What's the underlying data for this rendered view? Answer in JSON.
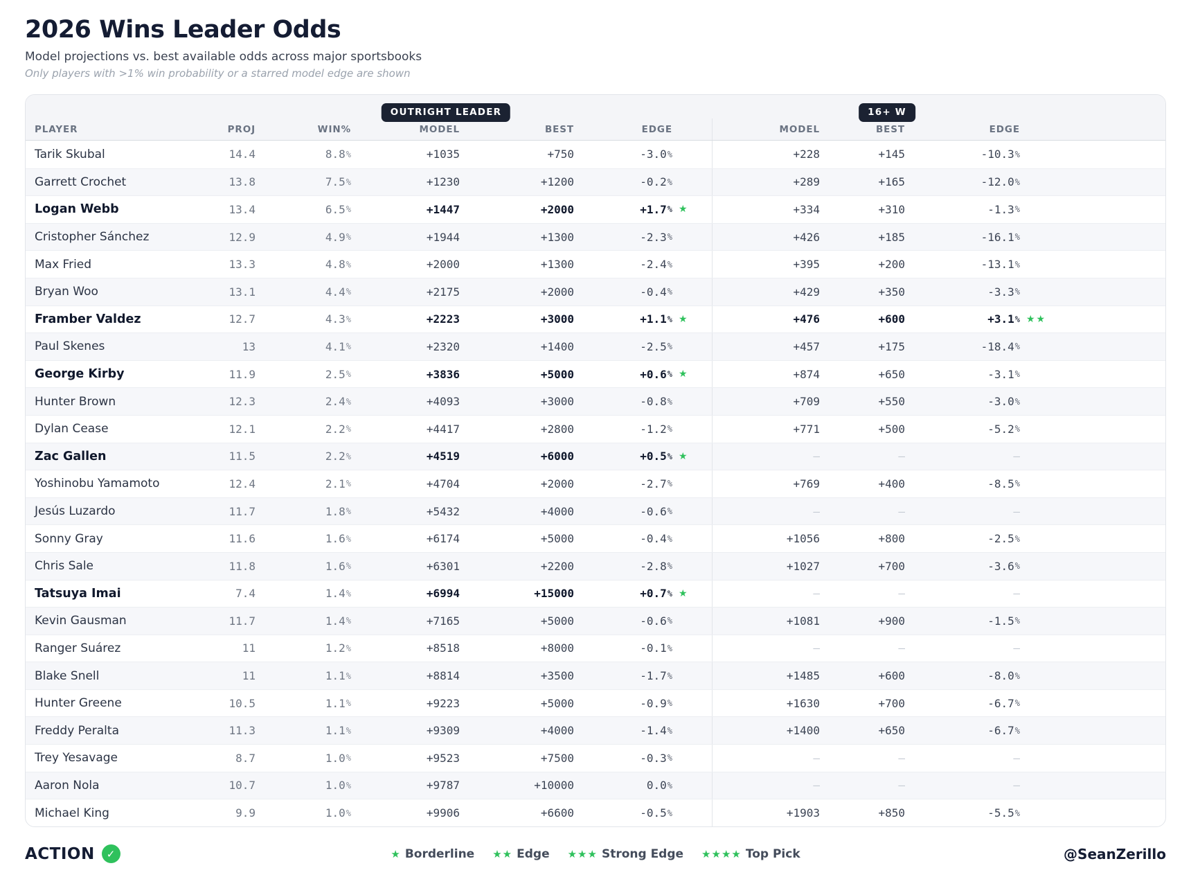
{
  "header": {
    "title": "2026 Wins Leader Odds",
    "subtitle": "Model projections vs. best available odds across major sportsbooks",
    "note": "Only players with >1% win probability or a starred model edge are shown"
  },
  "symbols": {
    "percent": "%"
  },
  "colors": {
    "accent_green": "#2fc15c",
    "badge_navy": "#1b2232"
  },
  "table": {
    "group_badges": {
      "outright": "OUTRIGHT LEADER",
      "wins16": "16+ W"
    },
    "columns": {
      "player": "PLAYER",
      "proj": "PROJ",
      "win": "WIN%",
      "model": "MODEL",
      "best": "BEST",
      "edge": "EDGE"
    },
    "rows": [
      {
        "player": "Tarik Skubal",
        "proj": "14.4",
        "win": "8.8",
        "om": "+1035",
        "ob": "+750",
        "oe": "-3.0",
        "os": "",
        "wm": "+228",
        "wb": "+145",
        "we": "-10.3",
        "ws": "",
        "bold": false
      },
      {
        "player": "Garrett Crochet",
        "proj": "13.8",
        "win": "7.5",
        "om": "+1230",
        "ob": "+1200",
        "oe": "-0.2",
        "os": "",
        "wm": "+289",
        "wb": "+165",
        "we": "-12.0",
        "ws": "",
        "bold": false
      },
      {
        "player": "Logan Webb",
        "proj": "13.4",
        "win": "6.5",
        "om": "+1447",
        "ob": "+2000",
        "oe": "+1.7",
        "os": "★",
        "wm": "+334",
        "wb": "+310",
        "we": "-1.3",
        "ws": "",
        "bold": true
      },
      {
        "player": "Cristopher Sánchez",
        "proj": "12.9",
        "win": "4.9",
        "om": "+1944",
        "ob": "+1300",
        "oe": "-2.3",
        "os": "",
        "wm": "+426",
        "wb": "+185",
        "we": "-16.1",
        "ws": "",
        "bold": false
      },
      {
        "player": "Max Fried",
        "proj": "13.3",
        "win": "4.8",
        "om": "+2000",
        "ob": "+1300",
        "oe": "-2.4",
        "os": "",
        "wm": "+395",
        "wb": "+200",
        "we": "-13.1",
        "ws": "",
        "bold": false
      },
      {
        "player": "Bryan Woo",
        "proj": "13.1",
        "win": "4.4",
        "om": "+2175",
        "ob": "+2000",
        "oe": "-0.4",
        "os": "",
        "wm": "+429",
        "wb": "+350",
        "we": "-3.3",
        "ws": "",
        "bold": false
      },
      {
        "player": "Framber Valdez",
        "proj": "12.7",
        "win": "4.3",
        "om": "+2223",
        "ob": "+3000",
        "oe": "+1.1",
        "os": "★",
        "wm": "+476",
        "wb": "+600",
        "we": "+3.1",
        "ws": "★★",
        "bold": true
      },
      {
        "player": "Paul Skenes",
        "proj": "13",
        "win": "4.1",
        "om": "+2320",
        "ob": "+1400",
        "oe": "-2.5",
        "os": "",
        "wm": "+457",
        "wb": "+175",
        "we": "-18.4",
        "ws": "",
        "bold": false
      },
      {
        "player": "George Kirby",
        "proj": "11.9",
        "win": "2.5",
        "om": "+3836",
        "ob": "+5000",
        "oe": "+0.6",
        "os": "★",
        "wm": "+874",
        "wb": "+650",
        "we": "-3.1",
        "ws": "",
        "bold": true
      },
      {
        "player": "Hunter Brown",
        "proj": "12.3",
        "win": "2.4",
        "om": "+4093",
        "ob": "+3000",
        "oe": "-0.8",
        "os": "",
        "wm": "+709",
        "wb": "+550",
        "we": "-3.0",
        "ws": "",
        "bold": false
      },
      {
        "player": "Dylan Cease",
        "proj": "12.1",
        "win": "2.2",
        "om": "+4417",
        "ob": "+2800",
        "oe": "-1.2",
        "os": "",
        "wm": "+771",
        "wb": "+500",
        "we": "-5.2",
        "ws": "",
        "bold": false
      },
      {
        "player": "Zac Gallen",
        "proj": "11.5",
        "win": "2.2",
        "om": "+4519",
        "ob": "+6000",
        "oe": "+0.5",
        "os": "★",
        "wm": "—",
        "wb": "—",
        "we": "—",
        "ws": "",
        "bold": true
      },
      {
        "player": "Yoshinobu Yamamoto",
        "proj": "12.4",
        "win": "2.1",
        "om": "+4704",
        "ob": "+2000",
        "oe": "-2.7",
        "os": "",
        "wm": "+769",
        "wb": "+400",
        "we": "-8.5",
        "ws": "",
        "bold": false
      },
      {
        "player": "Jesús Luzardo",
        "proj": "11.7",
        "win": "1.8",
        "om": "+5432",
        "ob": "+4000",
        "oe": "-0.6",
        "os": "",
        "wm": "—",
        "wb": "—",
        "we": "—",
        "ws": "",
        "bold": false
      },
      {
        "player": "Sonny Gray",
        "proj": "11.6",
        "win": "1.6",
        "om": "+6174",
        "ob": "+5000",
        "oe": "-0.4",
        "os": "",
        "wm": "+1056",
        "wb": "+800",
        "we": "-2.5",
        "ws": "",
        "bold": false
      },
      {
        "player": "Chris Sale",
        "proj": "11.8",
        "win": "1.6",
        "om": "+6301",
        "ob": "+2200",
        "oe": "-2.8",
        "os": "",
        "wm": "+1027",
        "wb": "+700",
        "we": "-3.6",
        "ws": "",
        "bold": false
      },
      {
        "player": "Tatsuya Imai",
        "proj": "7.4",
        "win": "1.4",
        "om": "+6994",
        "ob": "+15000",
        "oe": "+0.7",
        "os": "★",
        "wm": "—",
        "wb": "—",
        "we": "—",
        "ws": "",
        "bold": true
      },
      {
        "player": "Kevin Gausman",
        "proj": "11.7",
        "win": "1.4",
        "om": "+7165",
        "ob": "+5000",
        "oe": "-0.6",
        "os": "",
        "wm": "+1081",
        "wb": "+900",
        "we": "-1.5",
        "ws": "",
        "bold": false
      },
      {
        "player": "Ranger Suárez",
        "proj": "11",
        "win": "1.2",
        "om": "+8518",
        "ob": "+8000",
        "oe": "-0.1",
        "os": "",
        "wm": "—",
        "wb": "—",
        "we": "—",
        "ws": "",
        "bold": false
      },
      {
        "player": "Blake Snell",
        "proj": "11",
        "win": "1.1",
        "om": "+8814",
        "ob": "+3500",
        "oe": "-1.7",
        "os": "",
        "wm": "+1485",
        "wb": "+600",
        "we": "-8.0",
        "ws": "",
        "bold": false
      },
      {
        "player": "Hunter Greene",
        "proj": "10.5",
        "win": "1.1",
        "om": "+9223",
        "ob": "+5000",
        "oe": "-0.9",
        "os": "",
        "wm": "+1630",
        "wb": "+700",
        "we": "-6.7",
        "ws": "",
        "bold": false
      },
      {
        "player": "Freddy Peralta",
        "proj": "11.3",
        "win": "1.1",
        "om": "+9309",
        "ob": "+4000",
        "oe": "-1.4",
        "os": "",
        "wm": "+1400",
        "wb": "+650",
        "we": "-6.7",
        "ws": "",
        "bold": false
      },
      {
        "player": "Trey Yesavage",
        "proj": "8.7",
        "win": "1.0",
        "om": "+9523",
        "ob": "+7500",
        "oe": "-0.3",
        "os": "",
        "wm": "—",
        "wb": "—",
        "we": "—",
        "ws": "",
        "bold": false
      },
      {
        "player": "Aaron Nola",
        "proj": "10.7",
        "win": "1.0",
        "om": "+9787",
        "ob": "+10000",
        "oe": "0.0",
        "os": "",
        "wm": "—",
        "wb": "—",
        "we": "—",
        "ws": "",
        "bold": false
      },
      {
        "player": "Michael King",
        "proj": "9.9",
        "win": "1.0",
        "om": "+9906",
        "ob": "+6600",
        "oe": "-0.5",
        "os": "",
        "wm": "+1903",
        "wb": "+850",
        "we": "-5.5",
        "ws": "",
        "bold": false
      }
    ]
  },
  "footer": {
    "brand": "ACTION",
    "check": "✓",
    "legend": [
      {
        "stars": "★",
        "label": "Borderline"
      },
      {
        "stars": "★★",
        "label": "Edge"
      },
      {
        "stars": "★★★",
        "label": "Strong Edge"
      },
      {
        "stars": "★★★★",
        "label": "Top Pick"
      }
    ],
    "handle": "@SeanZerillo"
  }
}
